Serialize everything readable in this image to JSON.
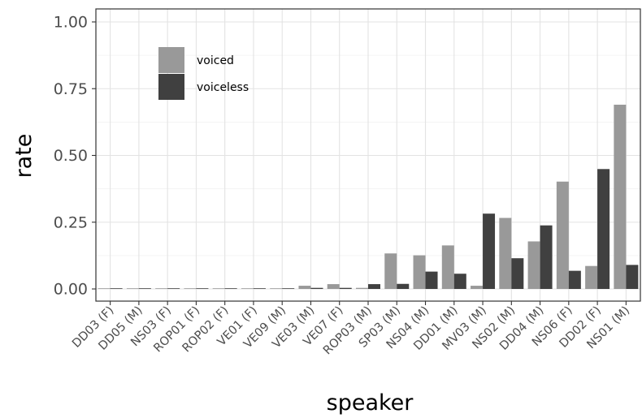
{
  "chart_data": {
    "type": "bar",
    "xlabel": "speaker",
    "ylabel": "rate",
    "ylim": [
      0,
      1
    ],
    "yticks": [
      "0.00",
      "0.25",
      "0.50",
      "0.75",
      "1.00"
    ],
    "grid": true,
    "legend_position": "top-left inside",
    "categories": [
      "DD03 (F)",
      "DD05 (M)",
      "NS03 (F)",
      "ROP01 (F)",
      "ROP02 (F)",
      "VE01 (F)",
      "VE09 (M)",
      "VE03 (M)",
      "VE07 (F)",
      "ROP03 (M)",
      "SP03 (M)",
      "NS04 (M)",
      "DD01 (M)",
      "MV03 (M)",
      "NS02 (M)",
      "DD04 (M)",
      "NS06 (F)",
      "DD02 (F)",
      "NS01 (M)"
    ],
    "series": [
      {
        "name": "voiced",
        "color": "#999999",
        "values": [
          0.001,
          0.001,
          0.001,
          0.001,
          0.001,
          0.001,
          0.001,
          0.012,
          0.018,
          0.004,
          0.133,
          0.126,
          0.163,
          0.012,
          0.266,
          0.178,
          0.402,
          0.086,
          0.69
        ]
      },
      {
        "name": "voiceless",
        "color": "#404040",
        "values": [
          0.001,
          0.001,
          0.001,
          0.001,
          0.001,
          0.001,
          0.001,
          0.004,
          0.004,
          0.018,
          0.019,
          0.065,
          0.057,
          0.282,
          0.115,
          0.238,
          0.068,
          0.449,
          0.09
        ]
      }
    ]
  }
}
